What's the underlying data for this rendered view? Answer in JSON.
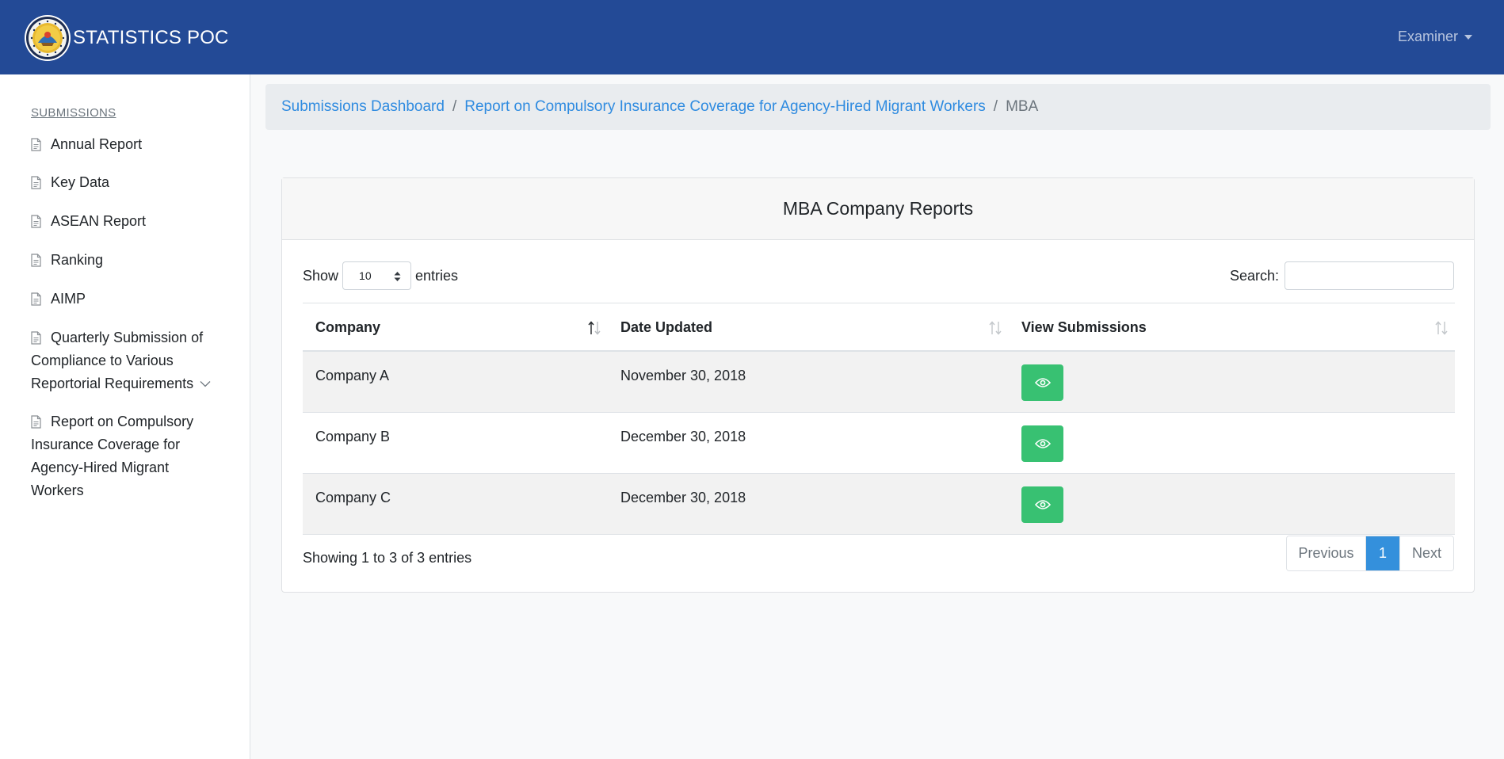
{
  "navbar": {
    "brand": "STATISTICS POC",
    "user": "Examiner",
    "colors": {
      "background": "#234a96",
      "user_text": "#b7c4de"
    }
  },
  "sidebar": {
    "heading": "SUBMISSIONS",
    "items": [
      {
        "label": "Annual Report",
        "icon": "document-icon"
      },
      {
        "label": "Key Data",
        "icon": "document-icon"
      },
      {
        "label": "ASEAN Report",
        "icon": "document-icon"
      },
      {
        "label": "Ranking",
        "icon": "document-icon"
      },
      {
        "label": "AIMP",
        "icon": "document-icon"
      },
      {
        "label": "Quarterly Submission of Compliance to Various Reportorial Requirements",
        "icon": "document-icon",
        "has_submenu": true
      },
      {
        "label": "Report on Compulsory Insurance Coverage for Agency-Hired Migrant Workers",
        "icon": "document-icon"
      }
    ]
  },
  "breadcrumb": {
    "items": [
      {
        "label": "Submissions Dashboard",
        "active": false
      },
      {
        "label": "Report on Compulsory Insurance Coverage for Agency-Hired Migrant Workers",
        "active": false
      },
      {
        "label": "MBA",
        "active": true
      }
    ],
    "separator": "/"
  },
  "card": {
    "title": "MBA Company Reports",
    "show_label": "Show",
    "entries_value": "10",
    "entries_label": "entries",
    "search_label": "Search:",
    "search_value": "",
    "columns": [
      "Company",
      "Date Updated",
      "View Submissions"
    ],
    "rows": [
      {
        "company": "Company A",
        "date_updated": "November 30, 2018",
        "action_icon": "eye-icon"
      },
      {
        "company": "Company B",
        "date_updated": "December 30, 2018",
        "action_icon": "eye-icon"
      },
      {
        "company": "Company C",
        "date_updated": "December 30, 2018",
        "action_icon": "eye-icon"
      }
    ],
    "info": "Showing 1 to 3 of 3 entries",
    "pagination": {
      "previous": "Previous",
      "current": "1",
      "next": "Next"
    },
    "colors": {
      "view_button": "#38c172",
      "page_active": "#3490dc"
    }
  }
}
